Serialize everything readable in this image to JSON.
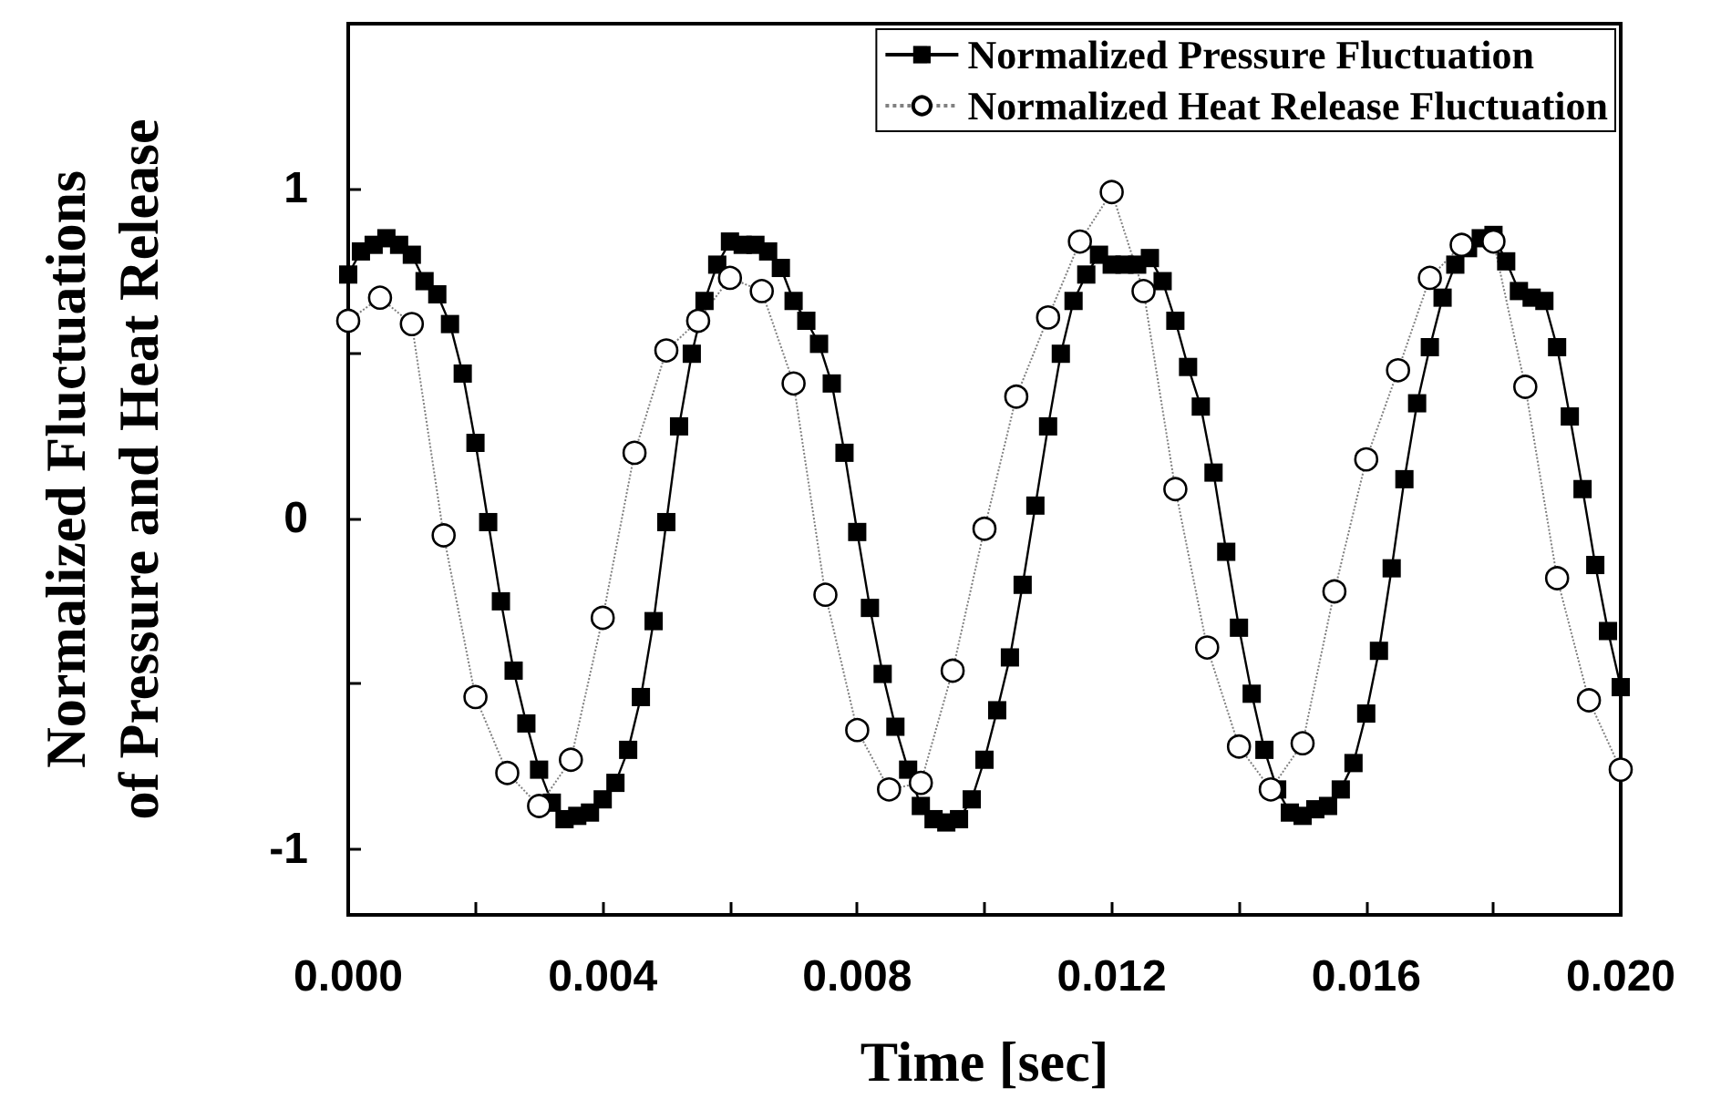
{
  "chart_data": {
    "type": "line",
    "xlabel": "Time [sec]",
    "ylabel": "Normalized Fluctuations\nof Pressure and Heat Release",
    "xlim": [
      0,
      0.02
    ],
    "ylim": [
      -1.2,
      1.5
    ],
    "xticks": [
      {
        "value": 0,
        "label": "0.000"
      },
      {
        "value": 0.002,
        "label": null
      },
      {
        "value": 0.004,
        "label": "0.004"
      },
      {
        "value": 0.006,
        "label": null
      },
      {
        "value": 0.008,
        "label": "0.008"
      },
      {
        "value": 0.01,
        "label": null
      },
      {
        "value": 0.012,
        "label": "0.012"
      },
      {
        "value": 0.014,
        "label": null
      },
      {
        "value": 0.016,
        "label": "0.016"
      },
      {
        "value": 0.018,
        "label": null
      },
      {
        "value": 0.02,
        "label": "0.020"
      }
    ],
    "yticks": [
      -1,
      {
        "value": -0.5,
        "label": null
      },
      0,
      {
        "value": 0.5,
        "label": null
      },
      1
    ],
    "grid": false,
    "legend": "top right",
    "series": [
      {
        "name": "Normalized Pressure Fluctuation",
        "color": "#000000",
        "marker": "square",
        "line_style": "solid",
        "x": [
          0,
          0.0002,
          0.0004,
          0.0006,
          0.0008,
          0.001,
          0.0012,
          0.0014,
          0.0016,
          0.0018,
          0.002,
          0.0022,
          0.0024,
          0.0026,
          0.0028,
          0.003,
          0.0032,
          0.0034,
          0.0036,
          0.0038,
          0.004,
          0.0042,
          0.0044,
          0.0046,
          0.0048,
          0.005,
          0.0052,
          0.0054,
          0.0056,
          0.0058,
          0.006,
          0.0062,
          0.0064,
          0.0066,
          0.0068,
          0.007,
          0.0072,
          0.0074,
          0.0076,
          0.0078,
          0.008,
          0.0082,
          0.0084,
          0.0086,
          0.0088,
          0.009,
          0.0092,
          0.0094,
          0.0096,
          0.0098,
          0.01,
          0.0102,
          0.0104,
          0.0106,
          0.0108,
          0.011,
          0.0112,
          0.0114,
          0.0116,
          0.0118,
          0.012,
          0.0122,
          0.0124,
          0.0126,
          0.0128,
          0.013,
          0.0132,
          0.0134,
          0.0136,
          0.0138,
          0.014,
          0.0142,
          0.0144,
          0.0146,
          0.0148,
          0.015,
          0.0152,
          0.0154,
          0.0156,
          0.0158,
          0.016,
          0.0162,
          0.0164,
          0.0166,
          0.0168,
          0.017,
          0.0172,
          0.0174,
          0.0176,
          0.0178,
          0.018,
          0.0182,
          0.0184,
          0.0186,
          0.0188,
          0.019,
          0.0192,
          0.0194,
          0.0196,
          0.0198,
          0.02
        ],
        "values": [
          0.74,
          0.81,
          0.83,
          0.85,
          0.83,
          0.8,
          0.72,
          0.68,
          0.59,
          0.44,
          0.23,
          -0.01,
          -0.25,
          -0.46,
          -0.62,
          -0.76,
          -0.86,
          -0.91,
          -0.9,
          -0.89,
          -0.85,
          -0.8,
          -0.7,
          -0.54,
          -0.31,
          -0.01,
          0.28,
          0.5,
          0.66,
          0.77,
          0.84,
          0.83,
          0.83,
          0.81,
          0.76,
          0.66,
          0.6,
          0.53,
          0.41,
          0.2,
          -0.04,
          -0.27,
          -0.47,
          -0.63,
          -0.76,
          -0.87,
          -0.91,
          -0.92,
          -0.91,
          -0.85,
          -0.73,
          -0.58,
          -0.42,
          -0.2,
          0.04,
          0.28,
          0.5,
          0.66,
          0.74,
          0.8,
          0.77,
          0.77,
          0.77,
          0.79,
          0.72,
          0.6,
          0.46,
          0.34,
          0.14,
          -0.1,
          -0.33,
          -0.53,
          -0.7,
          -0.82,
          -0.89,
          -0.9,
          -0.88,
          -0.87,
          -0.82,
          -0.74,
          -0.59,
          -0.4,
          -0.15,
          0.12,
          0.35,
          0.52,
          0.67,
          0.77,
          0.82,
          0.85,
          0.86,
          0.78,
          0.69,
          0.67,
          0.66,
          0.52,
          0.31,
          0.09,
          -0.14,
          -0.34,
          -0.51
        ]
      },
      {
        "name": "Normalized Heat Release Fluctuation",
        "color": "#000000",
        "marker": "circle",
        "line_style": "dotted",
        "x": [
          0,
          0.0005,
          0.001,
          0.0015,
          0.002,
          0.0025,
          0.003,
          0.0035,
          0.004,
          0.0045,
          0.005,
          0.0055,
          0.006,
          0.0065,
          0.007,
          0.0075,
          0.008,
          0.0085,
          0.009,
          0.0095,
          0.01,
          0.0105,
          0.011,
          0.0115,
          0.012,
          0.0125,
          0.013,
          0.0135,
          0.014,
          0.0145,
          0.015,
          0.0155,
          0.016,
          0.0165,
          0.017,
          0.0175,
          0.018,
          0.0185,
          0.019,
          0.0195,
          0.02
        ],
        "values": [
          0.6,
          0.67,
          0.59,
          -0.05,
          -0.54,
          -0.77,
          -0.87,
          -0.73,
          -0.3,
          0.2,
          0.51,
          0.6,
          0.73,
          0.69,
          0.41,
          -0.23,
          -0.64,
          -0.82,
          -0.8,
          -0.46,
          -0.03,
          0.37,
          0.61,
          0.84,
          0.99,
          0.69,
          0.09,
          -0.39,
          -0.69,
          -0.82,
          -0.68,
          -0.22,
          0.18,
          0.45,
          0.73,
          0.83,
          0.84,
          0.4,
          -0.18,
          -0.55,
          -0.76
        ]
      }
    ]
  }
}
